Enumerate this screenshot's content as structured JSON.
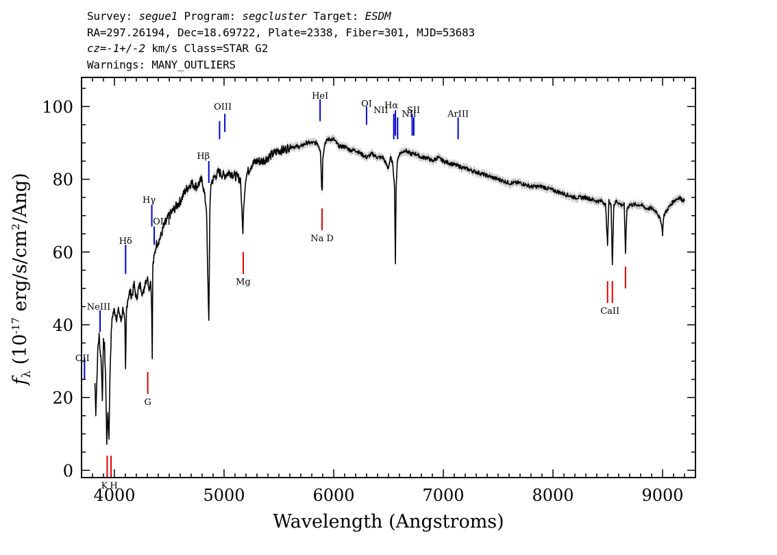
{
  "header": {
    "survey_label": "Survey:",
    "survey": "segue1",
    "program_label": "Program:",
    "program": "segcluster",
    "target_label": "Target:",
    "target": "ESDM",
    "line2": "RA=297.26194, Dec=18.69722, Plate=2338, Fiber=301, MJD=53683",
    "cz_label": "cz=",
    "cz_value": "-1+/-2",
    "cz_rest": " km/s Class=STAR G2",
    "warnings": "Warnings: MANY_OUTLIERS"
  },
  "chart_data": {
    "type": "line",
    "xlabel": "Wavelength (Angstroms)",
    "ylabel": "f_λ (10^-17 erg/s/cm^2/Ang)",
    "xlim": [
      3700,
      9300
    ],
    "ylim": [
      -2,
      108
    ],
    "x_ticks": [
      4000,
      5000,
      6000,
      7000,
      8000,
      9000
    ],
    "y_ticks": [
      0,
      20,
      40,
      60,
      80,
      100
    ],
    "x_tick_labels": [
      "4000",
      "5000",
      "6000",
      "7000",
      "8000",
      "9000"
    ],
    "y_tick_labels": [
      "0",
      "20",
      "40",
      "60",
      "80",
      "100"
    ],
    "grid": false,
    "series": [
      {
        "color": "#000000",
        "error_color": "#b4b4b4",
        "x": [
          3822,
          3830,
          3840,
          3850,
          3860,
          3870,
          3880,
          3890,
          3900,
          3910,
          3920,
          3930,
          3935,
          3940,
          3950,
          3960,
          3968,
          3975,
          3985,
          4000,
          4020,
          4040,
          4060,
          4080,
          4095,
          4101,
          4110,
          4120,
          4140,
          4160,
          4180,
          4200,
          4220,
          4240,
          4260,
          4280,
          4300,
          4320,
          4330,
          4340,
          4345,
          4350,
          4360,
          4380,
          4400,
          4420,
          4450,
          4500,
          4550,
          4600,
          4650,
          4700,
          4750,
          4800,
          4820,
          4840,
          4850,
          4861,
          4870,
          4880,
          4900,
          4950,
          5000,
          5050,
          5100,
          5150,
          5167,
          5172,
          5183,
          5200,
          5250,
          5300,
          5350,
          5400,
          5450,
          5500,
          5550,
          5600,
          5650,
          5700,
          5750,
          5800,
          5850,
          5880,
          5890,
          5896,
          5900,
          5920,
          5950,
          6000,
          6050,
          6100,
          6150,
          6200,
          6250,
          6300,
          6350,
          6400,
          6450,
          6497,
          6520,
          6540,
          6555,
          6563,
          6570,
          6580,
          6600,
          6650,
          6700,
          6750,
          6800,
          6850,
          6900,
          6950,
          7000,
          7100,
          7200,
          7300,
          7400,
          7500,
          7600,
          7700,
          7800,
          7900,
          8000,
          8100,
          8200,
          8300,
          8400,
          8450,
          8480,
          8498,
          8510,
          8530,
          8542,
          8555,
          8580,
          8620,
          8650,
          8662,
          8675,
          8700,
          8750,
          8800,
          8850,
          8900,
          8950,
          8990,
          9000,
          9010,
          9050,
          9100,
          9150,
          9200
        ],
        "y": [
          24,
          16,
          25,
          34,
          37,
          33,
          30,
          20,
          35,
          34,
          25,
          8,
          10,
          16,
          9,
          27,
          35,
          40,
          43,
          44,
          42,
          44,
          41,
          45,
          40,
          27,
          44,
          47,
          49,
          48,
          51,
          47,
          50,
          51,
          48,
          52,
          53,
          50,
          53,
          45,
          30,
          56,
          58,
          62,
          63,
          64,
          67,
          70,
          72,
          74,
          77,
          79,
          78,
          80,
          76,
          72,
          55,
          41,
          70,
          79,
          80,
          82,
          81,
          82,
          81,
          80,
          68,
          66,
          75,
          81,
          84,
          85,
          85,
          86,
          87,
          88,
          88,
          89,
          89,
          89,
          90,
          90,
          90,
          88,
          78,
          77,
          86,
          90,
          91,
          91,
          89,
          89,
          88,
          88,
          87,
          86,
          87,
          86,
          86,
          83,
          86,
          84,
          78,
          57,
          78,
          85,
          87,
          88,
          87,
          87,
          86,
          86,
          85,
          86,
          85,
          84,
          83,
          82,
          81,
          80,
          79,
          79,
          78,
          78,
          77,
          76,
          75,
          75,
          74,
          74,
          73,
          62,
          74,
          73,
          57,
          73,
          74,
          73,
          73,
          60,
          72,
          73,
          73,
          73,
          72,
          72,
          71,
          68,
          65,
          70,
          72,
          74,
          75,
          74
        ]
      }
    ],
    "emission_lines": [
      {
        "label": "OII",
        "x": 3727
      },
      {
        "label": "NeIII",
        "x": 3869
      },
      {
        "label": "Hδ",
        "x": 4102
      },
      {
        "label": "Hγ",
        "x": 4341
      },
      {
        "label": "OIII",
        "x": 4363
      },
      {
        "label": "Hβ",
        "x": 4861
      },
      {
        "label": "OIII",
        "x": 4959
      },
      {
        "label": "OIII",
        "x": 5007
      },
      {
        "label": "HeI",
        "x": 5876
      },
      {
        "label": "OI",
        "x": 6300
      },
      {
        "label": "NII",
        "x": 6548
      },
      {
        "label": "Hα",
        "x": 6563
      },
      {
        "label": "NII",
        "x": 6583
      },
      {
        "label": "SII",
        "x": 6716
      },
      {
        "label": "SII",
        "x": 6731
      },
      {
        "label": "ArIII",
        "x": 7135
      }
    ],
    "absorption_lines": [
      {
        "label": "K",
        "x": 3934
      },
      {
        "label": "H",
        "x": 3969
      },
      {
        "label": "G",
        "x": 4304
      },
      {
        "label": "Mg",
        "x": 5175
      },
      {
        "label": "Na D",
        "x": 5894
      },
      {
        "label": "CaII",
        "x": 8498
      },
      {
        "label": "CaII",
        "x": 8542
      },
      {
        "label": "CaII",
        "x": 8662
      }
    ],
    "emission_color": "#0000cc",
    "absorption_color": "#dd0000"
  }
}
